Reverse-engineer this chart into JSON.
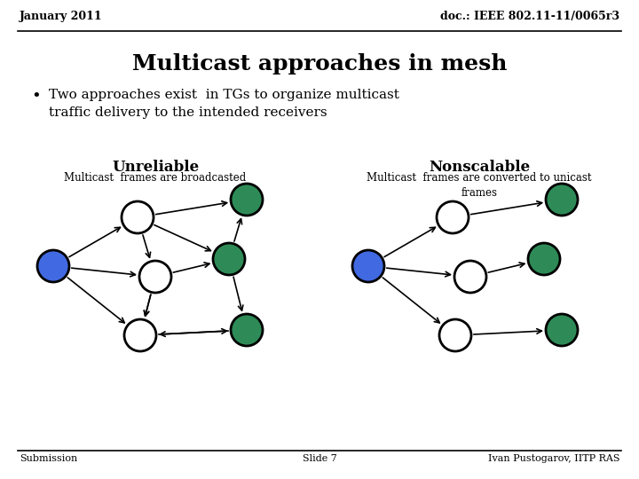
{
  "header_left": "January 2011",
  "header_right": "doc.: IEEE 802.11-11/0065r3",
  "title": "Multicast approaches in mesh",
  "bullet": "Two approaches exist  in TGs to organize multicast\ntraffic delivery to the intended receivers",
  "left_heading": "Unreliable",
  "left_subheading": "Multicast  frames are broadcasted",
  "right_heading": "Nonscalable",
  "right_subheading": "Multicast  frames are converted to unicast\nframes",
  "footer_left": "Submission",
  "footer_center": "Slide 7",
  "footer_right": "Ivan Pustogarov, IITP RAS",
  "color_blue": "#4169E1",
  "color_green": "#2E8B57",
  "color_white_node": "#FFFFFF",
  "color_black": "#000000",
  "bg_color": "#FFFFFF"
}
